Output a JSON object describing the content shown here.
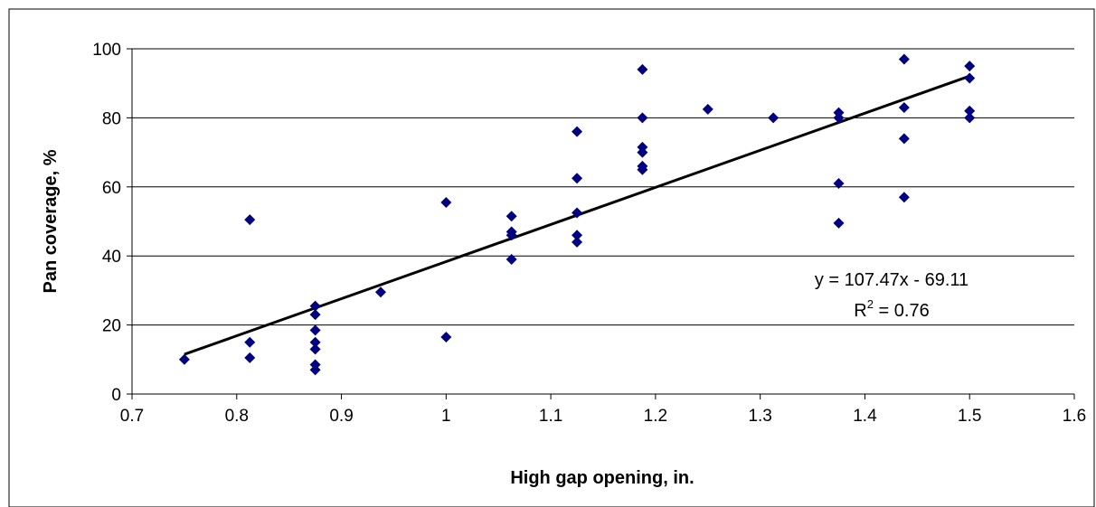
{
  "chart_data": {
    "type": "scatter",
    "title": "",
    "xlabel": "High gap opening, in.",
    "ylabel": "Pan coverage, %",
    "xlim": [
      0.7,
      1.6
    ],
    "ylim": [
      0,
      100
    ],
    "xticks": [
      0.7,
      0.8,
      0.9,
      1,
      1.1,
      1.2,
      1.3,
      1.4,
      1.5,
      1.6
    ],
    "xtick_labels": [
      "0.7",
      "0.8",
      "0.9",
      "1",
      "1.1",
      "1.2",
      "1.3",
      "1.4",
      "1.5",
      "1.6"
    ],
    "yticks": [
      0,
      20,
      40,
      60,
      80,
      100
    ],
    "ytick_labels": [
      "0",
      "20",
      "40",
      "60",
      "80",
      "100"
    ],
    "grid": "horizontal",
    "legend": "none",
    "marker": "diamond",
    "marker_color": "#000080",
    "line_color": "#000000",
    "series": [
      {
        "name": "",
        "points": [
          [
            0.75,
            10
          ],
          [
            0.8125,
            50.5
          ],
          [
            0.8125,
            15
          ],
          [
            0.8125,
            10.5
          ],
          [
            0.875,
            25.5
          ],
          [
            0.875,
            23
          ],
          [
            0.875,
            18.5
          ],
          [
            0.875,
            15
          ],
          [
            0.875,
            13
          ],
          [
            0.875,
            8.5
          ],
          [
            0.875,
            7
          ],
          [
            0.9375,
            29.5
          ],
          [
            1.0,
            55.5
          ],
          [
            1.0,
            16.5
          ],
          [
            1.0625,
            51.5
          ],
          [
            1.0625,
            47
          ],
          [
            1.0625,
            46
          ],
          [
            1.0625,
            39
          ],
          [
            1.125,
            76
          ],
          [
            1.125,
            62.5
          ],
          [
            1.125,
            52.5
          ],
          [
            1.125,
            46
          ],
          [
            1.125,
            44
          ],
          [
            1.1875,
            94
          ],
          [
            1.1875,
            80
          ],
          [
            1.1875,
            71.5
          ],
          [
            1.1875,
            70
          ],
          [
            1.1875,
            66
          ],
          [
            1.1875,
            65
          ],
          [
            1.25,
            82.5
          ],
          [
            1.3125,
            80
          ],
          [
            1.375,
            81.5
          ],
          [
            1.375,
            80
          ],
          [
            1.375,
            61
          ],
          [
            1.375,
            49.5
          ],
          [
            1.4375,
            97
          ],
          [
            1.4375,
            83
          ],
          [
            1.4375,
            74
          ],
          [
            1.4375,
            57
          ],
          [
            1.5,
            95
          ],
          [
            1.5,
            91.5
          ],
          [
            1.5,
            82
          ],
          [
            1.5,
            80
          ]
        ]
      }
    ],
    "trendline": {
      "type": "linear",
      "slope": 107.47,
      "intercept": -69.11,
      "x_range": [
        0.75,
        1.5
      ],
      "equation_label": "y = 107.47x - 69.11",
      "r2_prefix": "R",
      "r2_sup": "2",
      "r2_suffix": " = 0.76"
    }
  }
}
